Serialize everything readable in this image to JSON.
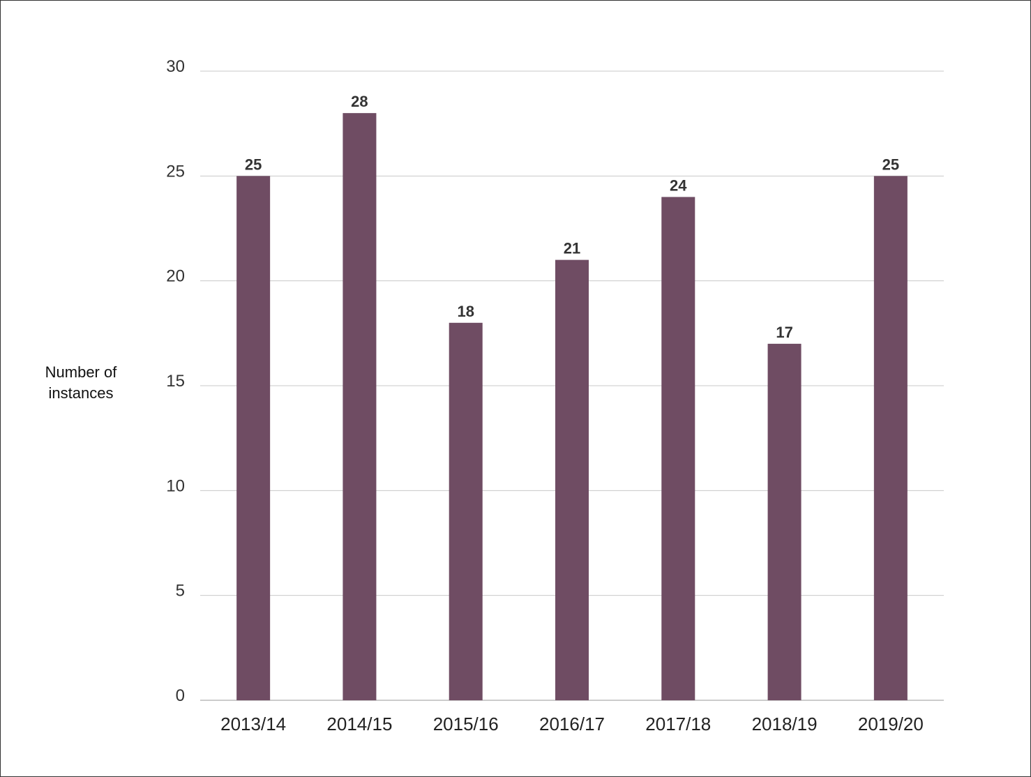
{
  "chart_data": {
    "type": "bar",
    "title": "",
    "xlabel": "",
    "ylabel_lines": [
      "Number of",
      "instances"
    ],
    "categories": [
      "2013/14",
      "2014/15",
      "2015/16",
      "2016/17",
      "2017/18",
      "2018/19",
      "2019/20"
    ],
    "values": [
      25,
      28,
      18,
      21,
      24,
      17,
      25
    ],
    "ylim": [
      0,
      30
    ],
    "yticks": [
      0,
      5,
      10,
      15,
      20,
      25,
      30
    ],
    "grid": true,
    "legend": "none",
    "data_labels": true,
    "colors": {
      "bar": "#6f4c63",
      "grid": "#c8c8c8",
      "axis": "#9a9a9a"
    }
  }
}
